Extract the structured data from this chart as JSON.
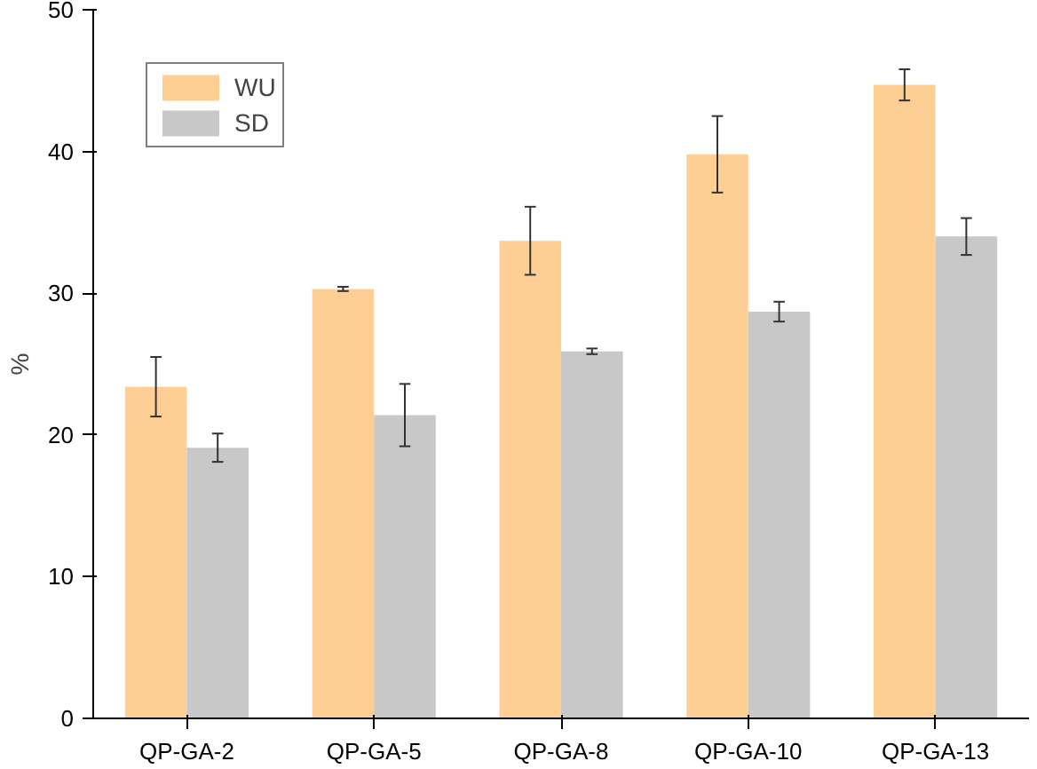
{
  "chart_data": {
    "type": "bar",
    "ylabel": "%",
    "categories": [
      "QP-GA-2",
      "QP-GA-5",
      "QP-GA-8",
      "QP-GA-10",
      "QP-GA-13"
    ],
    "series": [
      {
        "name": "WU",
        "color": "#fecf95",
        "values": [
          23.4,
          30.3,
          33.7,
          39.8,
          44.7
        ],
        "errors": [
          2.1,
          0.15,
          2.4,
          2.7,
          1.1
        ]
      },
      {
        "name": "SD",
        "color": "#c8c8c8",
        "values": [
          19.1,
          21.4,
          25.9,
          28.7,
          34.0
        ],
        "errors": [
          1.0,
          2.2,
          0.2,
          0.7,
          1.3
        ]
      }
    ],
    "ylim": [
      0,
      50
    ],
    "yticks": [
      0,
      10,
      20,
      30,
      40,
      50
    ],
    "grid": false,
    "legend": "top left"
  }
}
